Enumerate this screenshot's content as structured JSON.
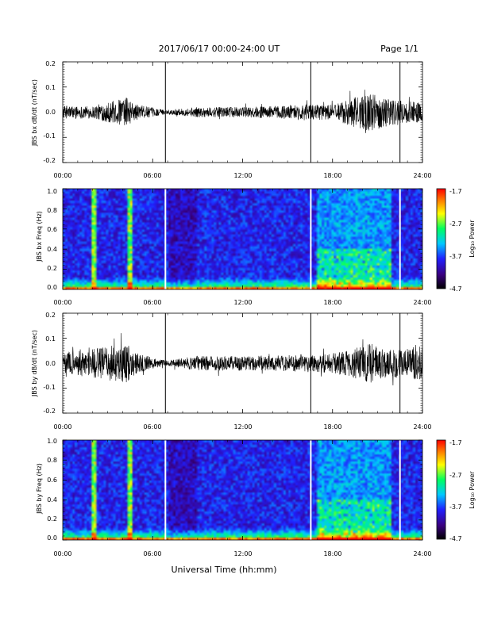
{
  "header": {
    "title": "2017/06/17  00:00-24:00 UT",
    "page": "Page 1/1"
  },
  "xaxis": {
    "label": "Universal Time (hh:mm)",
    "ticks": [
      "00:00",
      "06:00",
      "12:00",
      "18:00",
      "24:00"
    ],
    "range_hours": [
      0,
      24
    ]
  },
  "colorbar": {
    "label": "Log₁₀ Power",
    "ticks": [
      "-1.7",
      "-2.7",
      "-3.7",
      "-4.7"
    ],
    "range": [
      -4.7,
      -1.7
    ],
    "colors": [
      "#000000",
      "#3a0080",
      "#2020ff",
      "#00c8ff",
      "#00ff60",
      "#ffff00",
      "#ff8000",
      "#ff0000"
    ]
  },
  "chart_data": [
    {
      "type": "line",
      "ylabel": "JBS bx dB/dt (nT/sec)",
      "ylim": [
        -0.2,
        0.2
      ],
      "yticks": [
        "0.2",
        "0.1",
        "0.0",
        "-0.1",
        "-0.2"
      ],
      "x_range": [
        "00:00",
        "24:00"
      ],
      "data_gaps_hours": [
        6.85,
        16.55,
        22.5
      ],
      "amplitude_envelope": {
        "x_hours": [
          0,
          2,
          4.3,
          4.6,
          5,
          6.5,
          7,
          9,
          12,
          14,
          16,
          18,
          19.5,
          20.5,
          21.5,
          23,
          24
        ],
        "amplitude": [
          0.025,
          0.025,
          0.06,
          0.04,
          0.03,
          0.012,
          0.008,
          0.02,
          0.02,
          0.025,
          0.03,
          0.03,
          0.06,
          0.075,
          0.06,
          0.045,
          0.04
        ]
      }
    },
    {
      "type": "heatmap",
      "ylabel": "JBS bx Freq (Hz)",
      "ylim": [
        0.0,
        1.0
      ],
      "yticks": [
        "1.0",
        "0.8",
        "0.6",
        "0.4",
        "0.2",
        "0.0"
      ],
      "zlim": [
        -4.7,
        -1.7
      ],
      "x_range": [
        "00:00",
        "24:00"
      ],
      "data_gaps_hours": [
        6.85,
        16.55,
        22.5
      ],
      "bright_bands_hours": [
        2.1,
        4.5
      ]
    },
    {
      "type": "line",
      "ylabel": "JBS by dB/dt (nT/sec)",
      "ylim": [
        -0.2,
        0.2
      ],
      "yticks": [
        "0.2",
        "0.1",
        "0.0",
        "-0.1",
        "-0.2"
      ],
      "x_range": [
        "00:00",
        "24:00"
      ],
      "data_gaps_hours": [
        6.85,
        16.55,
        22.5
      ],
      "amplitude_envelope": {
        "x_hours": [
          0,
          2,
          4.3,
          4.6,
          5,
          6.5,
          7,
          9,
          12,
          14,
          16,
          18,
          19.5,
          20.5,
          21.5,
          23,
          24
        ],
        "amplitude": [
          0.04,
          0.06,
          0.08,
          0.05,
          0.04,
          0.015,
          0.01,
          0.03,
          0.03,
          0.03,
          0.035,
          0.04,
          0.06,
          0.08,
          0.06,
          0.06,
          0.07
        ]
      }
    },
    {
      "type": "heatmap",
      "ylabel": "JBS by Freq (Hz)",
      "ylim": [
        0.0,
        1.0
      ],
      "yticks": [
        "1.0",
        "0.8",
        "0.6",
        "0.4",
        "0.2",
        "0.0"
      ],
      "zlim": [
        -4.7,
        -1.7
      ],
      "x_range": [
        "00:00",
        "24:00"
      ],
      "data_gaps_hours": [
        6.85,
        16.55,
        22.5
      ],
      "bright_bands_hours": [
        2.1,
        4.5
      ]
    }
  ]
}
